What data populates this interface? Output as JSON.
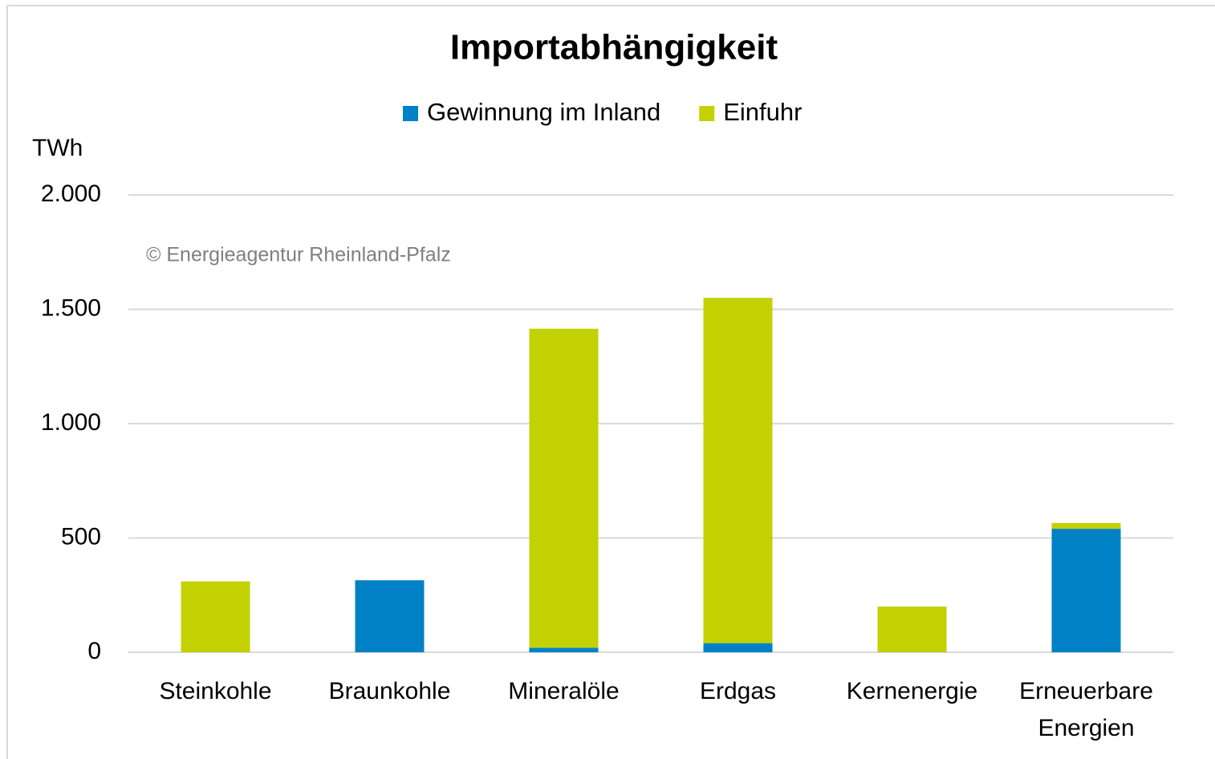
{
  "chart_data": {
    "type": "stacked_bar",
    "title": "Importabhängigkeit",
    "y_axis_label": "TWh",
    "annotation": "© Energieagentur Rheinland-Pfalz",
    "categories": [
      "Steinkohle",
      "Braunkohle",
      "Mineralöle",
      "Erdgas",
      "Kernenergie",
      "Erneuerbare Energien"
    ],
    "series": [
      {
        "name": "Gewinnung im Inland",
        "color": "#0081c6",
        "values": [
          0,
          315,
          20,
          40,
          0,
          540
        ]
      },
      {
        "name": "Einfuhr",
        "color": "#c3d100",
        "values": [
          310,
          0,
          1395,
          1510,
          200,
          25
        ]
      }
    ],
    "ylim": [
      0,
      2000
    ],
    "yticks": [
      0,
      500,
      {
        "value": 1000,
        "label": "1.000"
      },
      {
        "value": 1500,
        "label": "1.500"
      },
      {
        "value": 2000,
        "label": "2.000"
      }
    ],
    "grid": true,
    "legend": "top"
  }
}
